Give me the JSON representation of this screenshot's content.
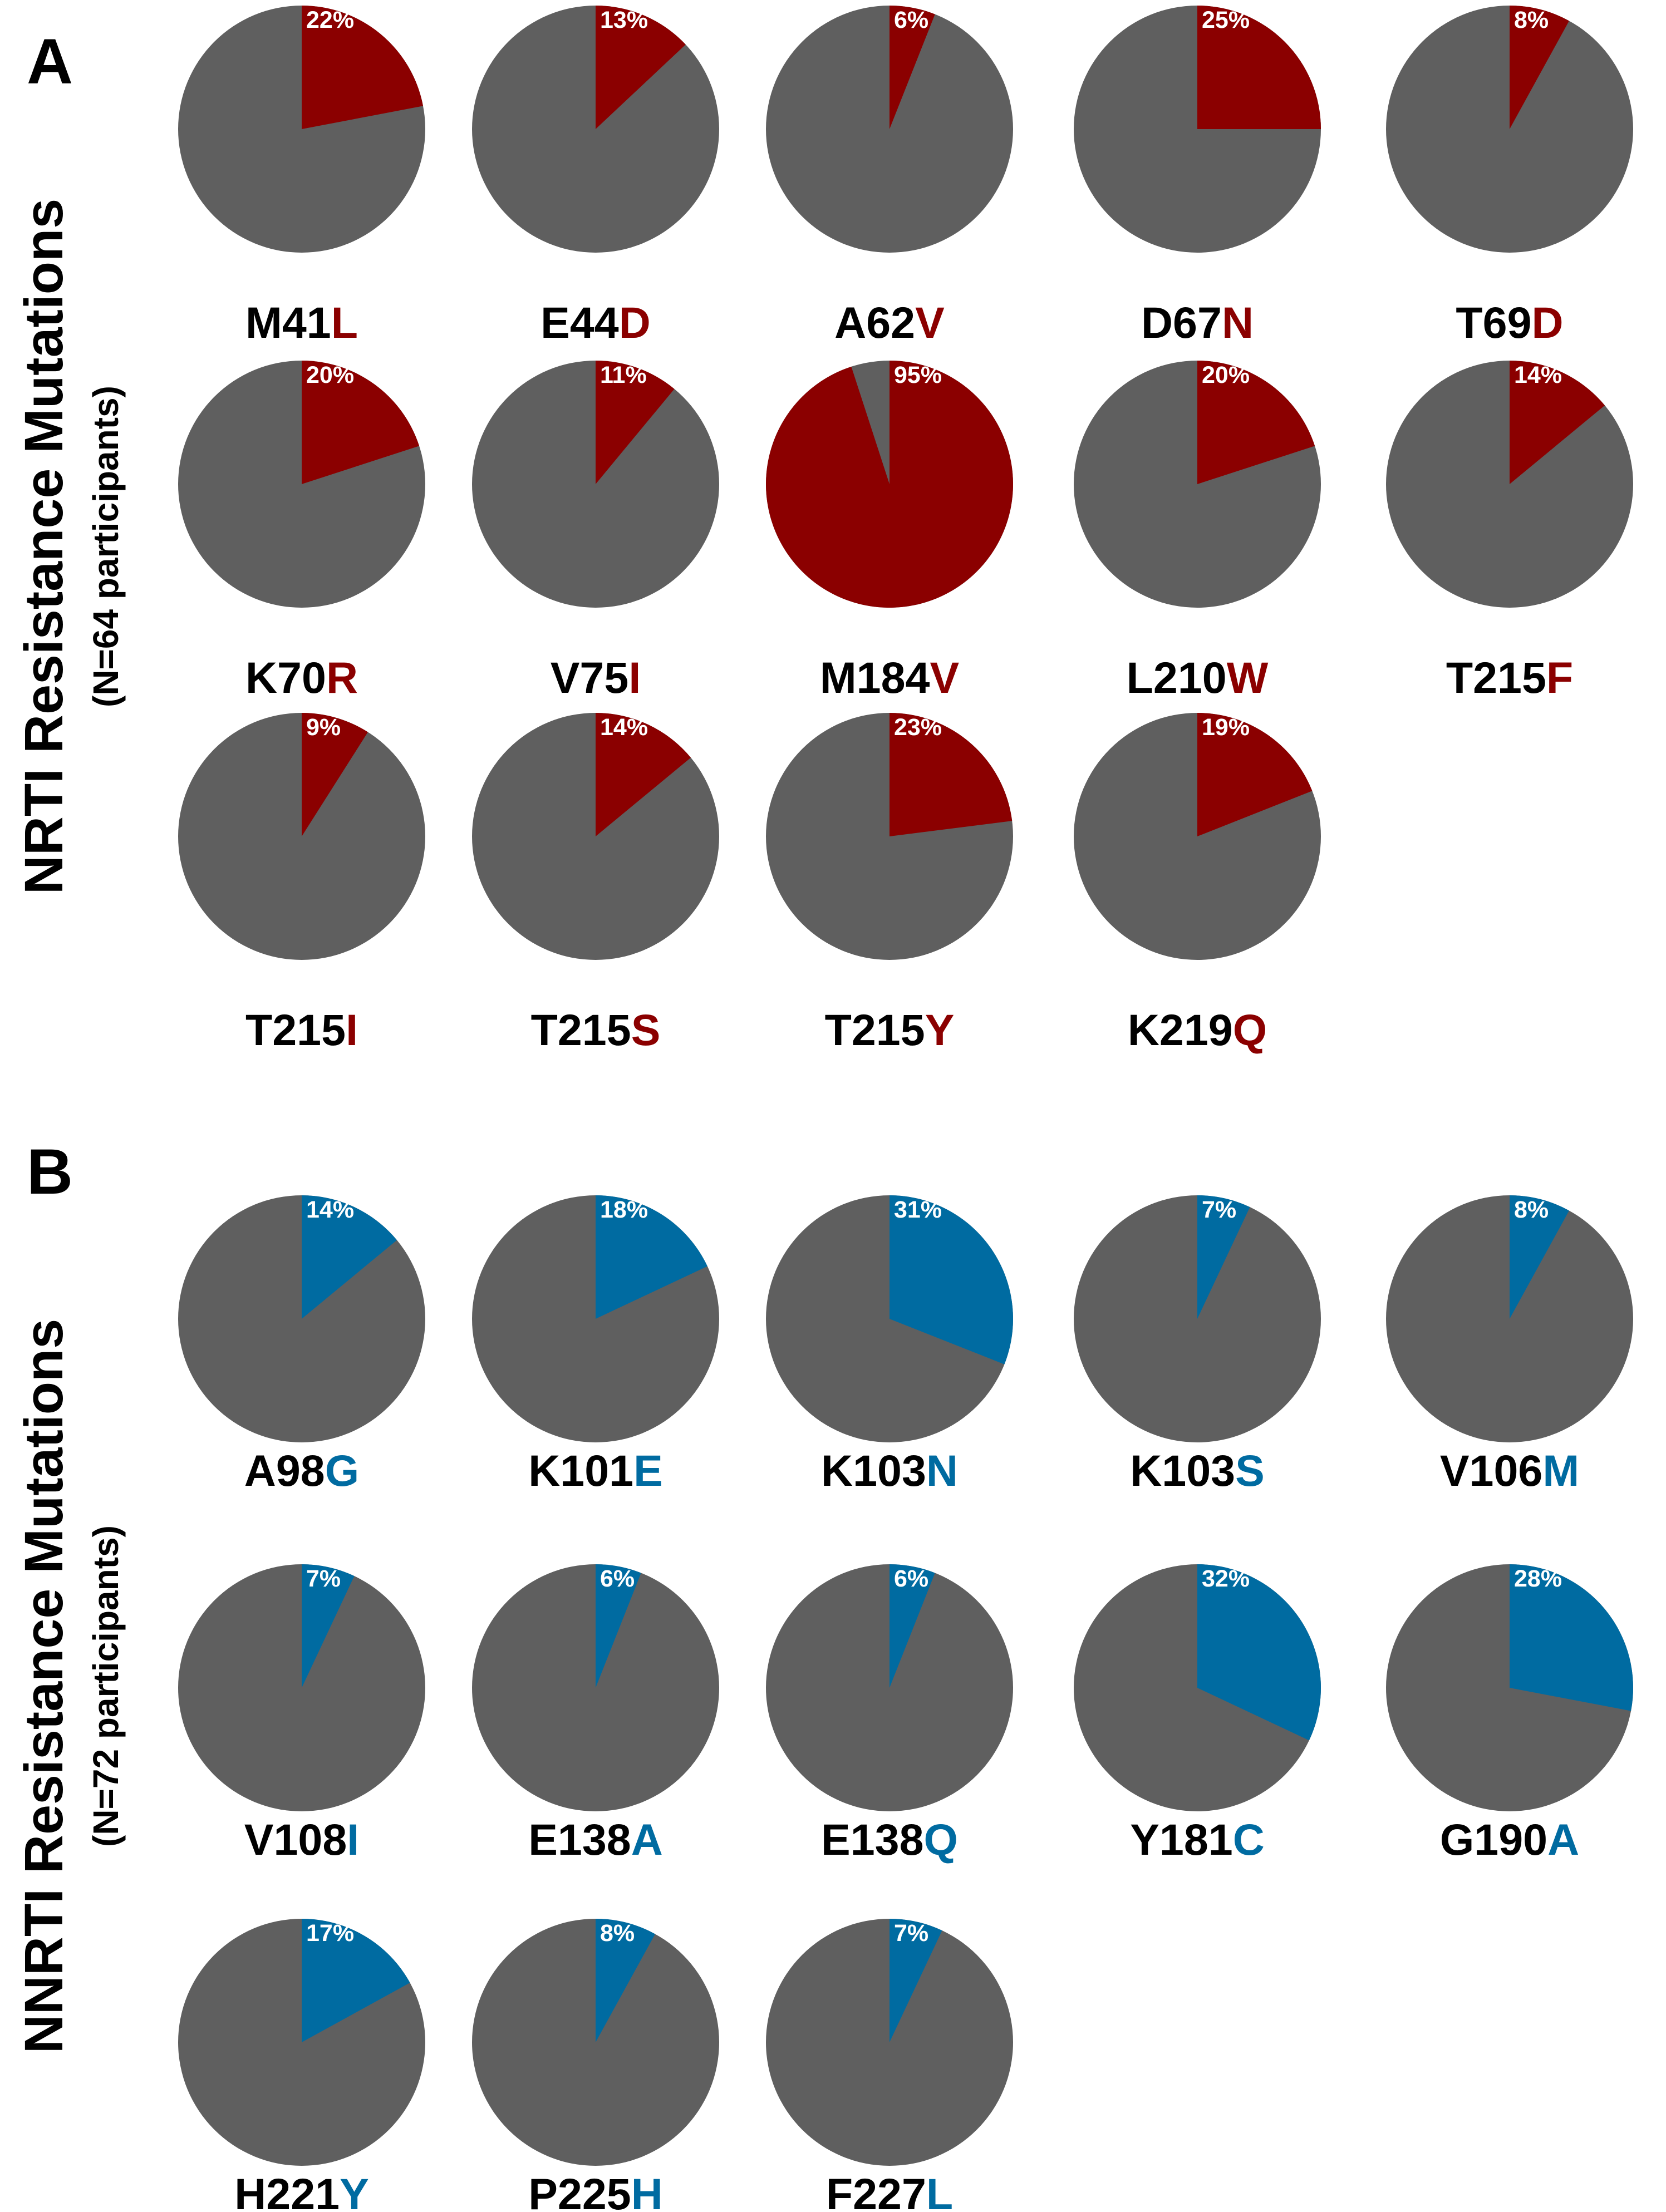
{
  "colors": {
    "nrti_accent": "#8b0000",
    "nnrti_accent": "#006ba1",
    "rest": "#5f5f5f",
    "text": "#000000",
    "pct_text": "#ffffff"
  },
  "chart_data": [
    {
      "type": "pie",
      "panel": "A",
      "title": "NRTI Resistance Mutations",
      "subtitle": "(N=64 participants)",
      "accent": "nrti_accent",
      "pies": [
        {
          "prefix": "M41",
          "aa": "L",
          "percent": 22,
          "pct_label": "22%"
        },
        {
          "prefix": "E44",
          "aa": "D",
          "percent": 13,
          "pct_label": "13%"
        },
        {
          "prefix": "A62",
          "aa": "V",
          "percent": 6,
          "pct_label": "6%"
        },
        {
          "prefix": "D67",
          "aa": "N",
          "percent": 25,
          "pct_label": "25%"
        },
        {
          "prefix": "T69",
          "aa": "D",
          "percent": 8,
          "pct_label": "8%"
        },
        {
          "prefix": "K70",
          "aa": "R",
          "percent": 20,
          "pct_label": "20%"
        },
        {
          "prefix": "V75",
          "aa": "I",
          "percent": 11,
          "pct_label": "11%"
        },
        {
          "prefix": "M184",
          "aa": "V",
          "percent": 95,
          "pct_label": "95%"
        },
        {
          "prefix": "L210",
          "aa": "W",
          "percent": 20,
          "pct_label": "20%"
        },
        {
          "prefix": "T215",
          "aa": "F",
          "percent": 14,
          "pct_label": "14%"
        },
        {
          "prefix": "T215",
          "aa": "I",
          "percent": 9,
          "pct_label": "9%"
        },
        {
          "prefix": "T215",
          "aa": "S",
          "percent": 14,
          "pct_label": "14%"
        },
        {
          "prefix": "T215",
          "aa": "Y",
          "percent": 23,
          "pct_label": "23%"
        },
        {
          "prefix": "K219",
          "aa": "Q",
          "percent": 19,
          "pct_label": "19%"
        }
      ]
    },
    {
      "type": "pie",
      "panel": "B",
      "title": "NNRTI Resistance Mutations",
      "subtitle": "(N=72 participants)",
      "accent": "nnrti_accent",
      "pies": [
        {
          "prefix": "A98",
          "aa": "G",
          "percent": 14,
          "pct_label": "14%"
        },
        {
          "prefix": "K101",
          "aa": "E",
          "percent": 18,
          "pct_label": "18%"
        },
        {
          "prefix": "K103",
          "aa": "N",
          "percent": 31,
          "pct_label": "31%"
        },
        {
          "prefix": "K103",
          "aa": "S",
          "percent": 7,
          "pct_label": "7%"
        },
        {
          "prefix": "V106",
          "aa": "M",
          "percent": 8,
          "pct_label": "8%"
        },
        {
          "prefix": "V108",
          "aa": "I",
          "percent": 7,
          "pct_label": "7%"
        },
        {
          "prefix": "E138",
          "aa": "A",
          "percent": 6,
          "pct_label": "6%"
        },
        {
          "prefix": "E138",
          "aa": "Q",
          "percent": 6,
          "pct_label": "6%"
        },
        {
          "prefix": "Y181",
          "aa": "C",
          "percent": 32,
          "pct_label": "32%"
        },
        {
          "prefix": "G190",
          "aa": "A",
          "percent": 28,
          "pct_label": "28%"
        },
        {
          "prefix": "H221",
          "aa": "Y",
          "percent": 17,
          "pct_label": "17%"
        },
        {
          "prefix": "P225",
          "aa": "H",
          "percent": 8,
          "pct_label": "8%"
        },
        {
          "prefix": "F227",
          "aa": "L",
          "percent": 7,
          "pct_label": "7%"
        }
      ]
    }
  ]
}
